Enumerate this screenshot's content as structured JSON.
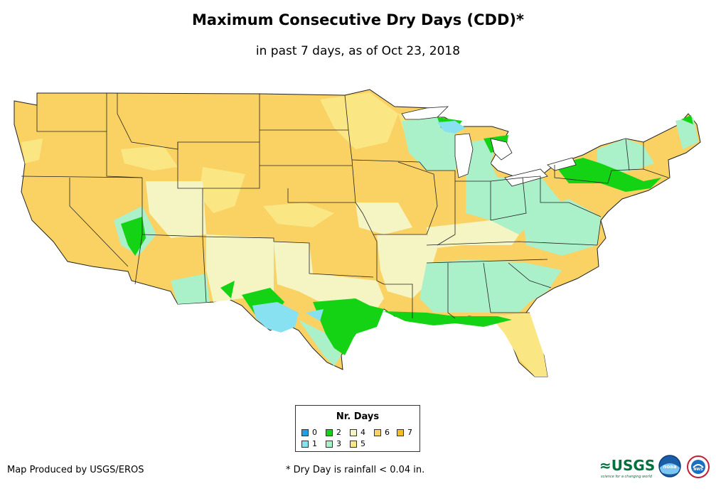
{
  "header": {
    "title": "Maximum Consecutive Dry Days (CDD)*",
    "subtitle": "in past 7 days, as of Oct 23, 2018"
  },
  "legend": {
    "title": "Nr. Days",
    "items": [
      {
        "label": "0",
        "color": "#1ea0e6"
      },
      {
        "label": "1",
        "color": "#87e1f0"
      },
      {
        "label": "2",
        "color": "#14d214"
      },
      {
        "label": "3",
        "color": "#aaf0c8"
      },
      {
        "label": "4",
        "color": "#f5f5c3"
      },
      {
        "label": "5",
        "color": "#fae682"
      },
      {
        "label": "6",
        "color": "#fad264"
      },
      {
        "label": "7",
        "color": "#f5be1e"
      }
    ]
  },
  "footer": {
    "credit": "Map Produced by USGS/EROS",
    "footnote": "* Dry Day is rainfall < 0.04 in."
  },
  "logos": {
    "usgs_mark": "≈USGS",
    "usgs_tagline": "science for a changing world",
    "noaa_mark": "noaa",
    "nws_mark": "NWS"
  }
}
